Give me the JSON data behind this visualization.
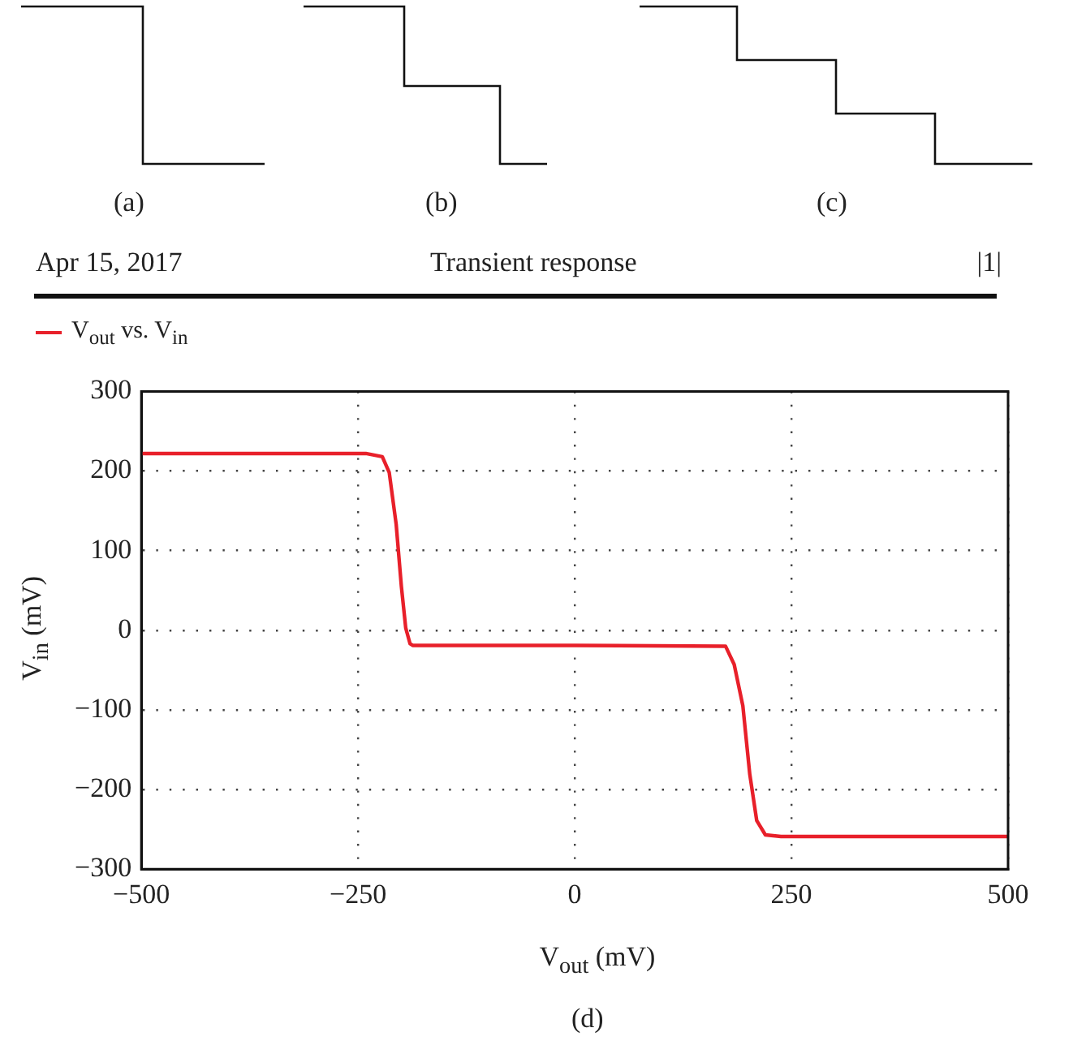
{
  "chart_data": {
    "type": "line",
    "title": "Transient response",
    "xlabel": "V$_{out}$ (mV)",
    "ylabel": "V$_{in}$ (mV)",
    "annotations": [
      "Apr 15, 2017",
      "|1|",
      "(a)",
      "(b)",
      "(c)",
      "(d)"
    ],
    "xlim": [
      -500,
      500
    ],
    "xticks": [
      {
        "value": -500,
        "label": "−500"
      },
      {
        "value": -250,
        "label": "−250"
      },
      0,
      250,
      500
    ],
    "ylim": [
      -300,
      300
    ],
    "yticks": [
      {
        "value": -300,
        "label": "−300"
      },
      {
        "value": -200,
        "label": "−200"
      },
      {
        "value": -100,
        "label": "−100"
      },
      0,
      100,
      200,
      300
    ],
    "grid": true,
    "legend": "top left",
    "marker": "none",
    "line_style": "solid",
    "series": [
      {
        "name": "V$_{out}$ vs. V$_{in}$",
        "color": "#e8202a",
        "x": [
          -500,
          -241,
          -222,
          -214,
          -206,
          -200,
          -195,
          -190,
          -187,
          0,
          174,
          184,
          194,
          202,
          210,
          220,
          238,
          500
        ],
        "values": [
          222,
          222,
          218,
          198,
          133,
          55,
          3,
          -17,
          -19,
          -19,
          -20,
          -43,
          -95,
          -181,
          -239,
          -257,
          -259,
          -259
        ]
      }
    ]
  }
}
